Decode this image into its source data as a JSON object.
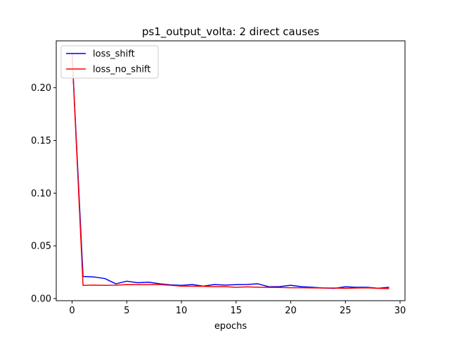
{
  "chart_data": {
    "type": "line",
    "title": "ps1_output_volta: 2 direct causes",
    "xlabel": "epochs",
    "ylabel": "",
    "xlim": [
      -1.45,
      30.45
    ],
    "ylim": [
      -0.002,
      0.2445
    ],
    "x_ticks": [
      0,
      5,
      10,
      15,
      20,
      25,
      30
    ],
    "y_ticks": [
      0.0,
      0.05,
      0.1,
      0.15,
      0.2
    ],
    "y_tick_labels": [
      "0.00",
      "0.05",
      "0.10",
      "0.15",
      "0.20"
    ],
    "grid": false,
    "legend_position": "top-left",
    "x": [
      0,
      1,
      2,
      3,
      4,
      5,
      6,
      7,
      8,
      9,
      10,
      11,
      12,
      13,
      14,
      15,
      16,
      17,
      18,
      19,
      20,
      21,
      22,
      23,
      24,
      25,
      26,
      27,
      28,
      29
    ],
    "series": [
      {
        "name": "loss_shift",
        "color": "#0000ff",
        "values": [
          0.232,
          0.021,
          0.0205,
          0.019,
          0.014,
          0.0165,
          0.015,
          0.0155,
          0.014,
          0.013,
          0.0125,
          0.0133,
          0.0118,
          0.0133,
          0.0128,
          0.0132,
          0.0134,
          0.014,
          0.0112,
          0.0114,
          0.0126,
          0.0113,
          0.0107,
          0.01,
          0.0097,
          0.0112,
          0.0107,
          0.0107,
          0.0098,
          0.0107
        ]
      },
      {
        "name": "loss_no_shift",
        "color": "#ff0000",
        "values": [
          0.232,
          0.0125,
          0.0128,
          0.0125,
          0.0127,
          0.0133,
          0.0132,
          0.0133,
          0.0133,
          0.0126,
          0.0118,
          0.0117,
          0.0116,
          0.0113,
          0.0113,
          0.0107,
          0.0111,
          0.0108,
          0.0106,
          0.0105,
          0.0103,
          0.0103,
          0.0101,
          0.01,
          0.01,
          0.0097,
          0.01,
          0.0102,
          0.0097,
          0.0094
        ]
      }
    ]
  }
}
